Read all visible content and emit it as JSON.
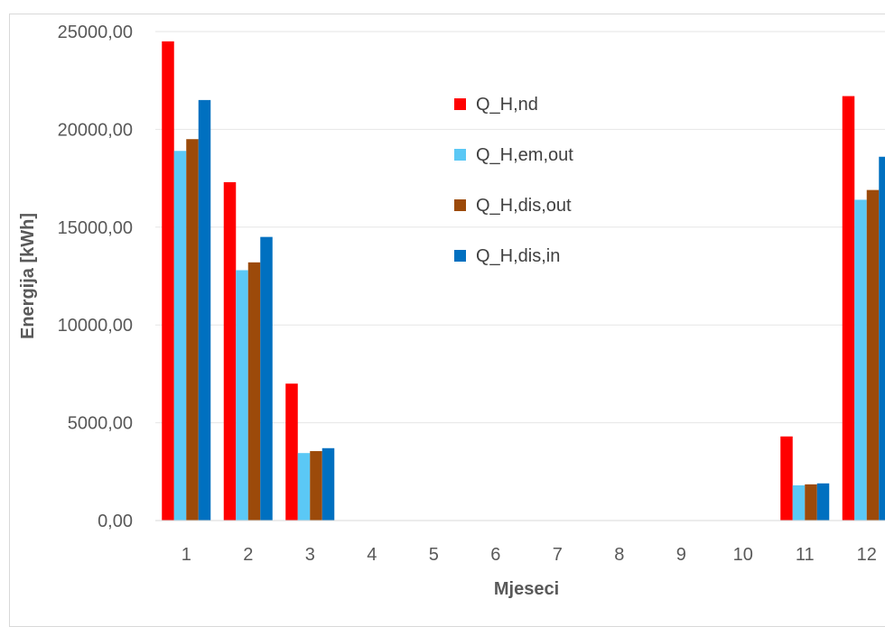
{
  "chart_data": {
    "type": "bar",
    "xlabel": "Mjeseci",
    "ylabel": "Energija [kWh]",
    "ylim": [
      0,
      25000
    ],
    "yticks": [
      0,
      5000,
      10000,
      15000,
      20000,
      25000
    ],
    "ytick_labels": [
      "0,00",
      "5000,00",
      "10000,00",
      "15000,00",
      "20000,00",
      "25000,00"
    ],
    "grid": true,
    "legend_position": "top-right",
    "categories": [
      "1",
      "2",
      "3",
      "4",
      "5",
      "6",
      "7",
      "8",
      "9",
      "10",
      "11",
      "12"
    ],
    "series": [
      {
        "name": "Q_H,nd",
        "color": "#ff0000",
        "values": [
          24500,
          17300,
          7000,
          0,
          0,
          0,
          0,
          0,
          0,
          0,
          4300,
          21700
        ]
      },
      {
        "name": "Q_H,em,out",
        "color": "#5bc8f5",
        "values": [
          18900,
          12800,
          3450,
          0,
          0,
          0,
          0,
          0,
          0,
          0,
          1800,
          16400
        ]
      },
      {
        "name": "Q_H,dis,out",
        "color": "#9c4a0a",
        "values": [
          19500,
          13200,
          3550,
          0,
          0,
          0,
          0,
          0,
          0,
          0,
          1850,
          16900
        ]
      },
      {
        "name": "Q_H,dis,in",
        "color": "#0070c0",
        "values": [
          21500,
          14500,
          3700,
          0,
          0,
          0,
          0,
          0,
          0,
          0,
          1900,
          18600
        ]
      }
    ]
  }
}
